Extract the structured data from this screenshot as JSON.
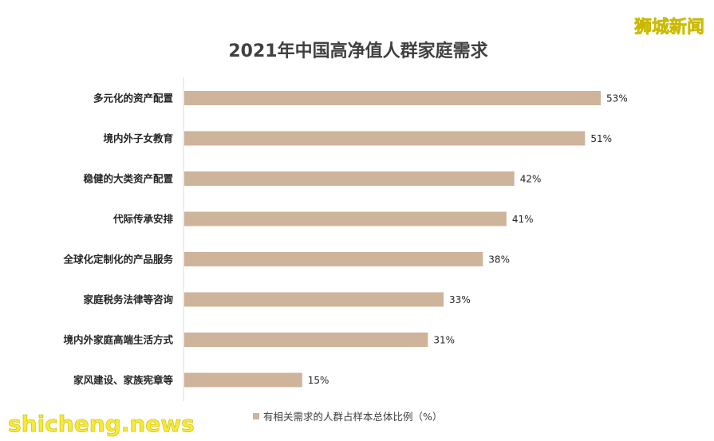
{
  "watermark_top": "狮城新闻",
  "watermark_bottom": "shicheng.news",
  "colors": {
    "bar": "#cdb49a",
    "axis": "#d9d9d9",
    "text": "#262626"
  },
  "chart_data": {
    "type": "bar",
    "orientation": "horizontal",
    "title": "2021年中国高净值人群家庭需求",
    "categories": [
      "多元化的资产配置",
      "境内外子女教育",
      "稳健的大类资产配置",
      "代际传承安排",
      "全球化定制化的产品服务",
      "家庭税务法律等咨询",
      "境内外家庭高端生活方式",
      "家风建设、家族宪章等"
    ],
    "values": [
      53,
      51,
      42,
      41,
      38,
      33,
      31,
      15
    ],
    "value_labels": [
      "53%",
      "51%",
      "42%",
      "41%",
      "38%",
      "33%",
      "31%",
      "15%"
    ],
    "series": [
      {
        "name": "有相关需求的人群占样本总体比例（%）",
        "values": [
          53,
          51,
          42,
          41,
          38,
          33,
          31,
          15
        ]
      }
    ],
    "xlim": [
      0,
      100
    ],
    "grid": false,
    "legend_position": "bottom"
  }
}
